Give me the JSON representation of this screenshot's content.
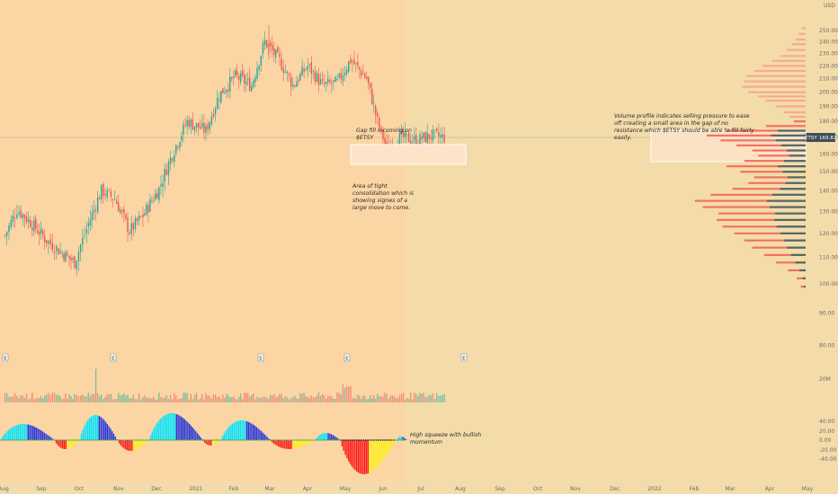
{
  "chart_data": {
    "type": "candlestick",
    "symbol": "ETSY",
    "currency": "USD",
    "last_price_label": "169.82",
    "last_price": 169.82,
    "price_axis": {
      "log_scale": true,
      "ylim": [
        56,
        260
      ],
      "ticks": [
        "250.00",
        "240.00",
        "230.00",
        "220.00",
        "210.00",
        "200.00",
        "190.00",
        "180.00",
        "170.00",
        "160.00",
        "150.00",
        "140.00",
        "130.00",
        "120.00",
        "110.00",
        "100.00",
        "90.00",
        "80.00",
        "70.00",
        "65.00",
        "60.00"
      ]
    },
    "x_axis": {
      "ticks": [
        "Aug",
        "Sep",
        "Oct",
        "Nov",
        "Dec",
        "2021",
        "Feb",
        "Mar",
        "Apr",
        "May",
        "Jun",
        "Jul",
        "Aug",
        "Sep",
        "Oct",
        "Nov",
        "Dec",
        "2022",
        "Feb",
        "Mar",
        "Apr",
        "May"
      ]
    },
    "close_path": [
      {
        "date": "2020-08-01",
        "close": 119
      },
      {
        "date": "2020-08-10",
        "close": 131
      },
      {
        "date": "2020-08-20",
        "close": 125
      },
      {
        "date": "2020-09-01",
        "close": 117
      },
      {
        "date": "2020-09-10",
        "close": 113
      },
      {
        "date": "2020-09-22",
        "close": 108
      },
      {
        "date": "2020-10-01",
        "close": 122
      },
      {
        "date": "2020-10-12",
        "close": 140
      },
      {
        "date": "2020-10-22",
        "close": 136
      },
      {
        "date": "2020-11-02",
        "close": 121
      },
      {
        "date": "2020-11-12",
        "close": 128
      },
      {
        "date": "2020-11-24",
        "close": 141
      },
      {
        "date": "2020-12-04",
        "close": 160
      },
      {
        "date": "2020-12-15",
        "close": 180
      },
      {
        "date": "2020-12-29",
        "close": 174
      },
      {
        "date": "2021-01-08",
        "close": 198
      },
      {
        "date": "2021-01-20",
        "close": 212
      },
      {
        "date": "2021-02-01",
        "close": 205
      },
      {
        "date": "2021-02-11",
        "close": 240
      },
      {
        "date": "2021-02-22",
        "close": 224
      },
      {
        "date": "2021-03-04",
        "close": 205
      },
      {
        "date": "2021-03-15",
        "close": 220
      },
      {
        "date": "2021-03-26",
        "close": 205
      },
      {
        "date": "2021-04-06",
        "close": 207
      },
      {
        "date": "2021-04-16",
        "close": 225
      },
      {
        "date": "2021-04-28",
        "close": 210
      },
      {
        "date": "2021-05-06",
        "close": 180
      },
      {
        "date": "2021-05-13",
        "close": 163
      },
      {
        "date": "2021-05-24",
        "close": 170
      },
      {
        "date": "2021-06-04",
        "close": 168
      },
      {
        "date": "2021-06-15",
        "close": 171
      },
      {
        "date": "2021-06-25",
        "close": 169.82
      }
    ],
    "volume_profile": {
      "rows": [
        {
          "price": 252,
          "volume": 4
        },
        {
          "price": 247,
          "volume": 7
        },
        {
          "price": 242,
          "volume": 10
        },
        {
          "price": 238,
          "volume": 14
        },
        {
          "price": 233,
          "volume": 19
        },
        {
          "price": 228,
          "volume": 25
        },
        {
          "price": 224,
          "volume": 34
        },
        {
          "price": 220,
          "volume": 44
        },
        {
          "price": 216,
          "volume": 52
        },
        {
          "price": 212,
          "volume": 60
        },
        {
          "price": 208,
          "volume": 62
        },
        {
          "price": 204,
          "volume": 64
        },
        {
          "price": 200,
          "volume": 58
        },
        {
          "price": 197,
          "volume": 48
        },
        {
          "price": 194,
          "volume": 40
        },
        {
          "price": 190,
          "volume": 30
        },
        {
          "price": 186,
          "volume": 22
        },
        {
          "price": 183,
          "volume": 16
        },
        {
          "price": 180,
          "volume": 12
        },
        {
          "price": 177,
          "volume": 40
        },
        {
          "price": 174,
          "volume": 80
        },
        {
          "price": 171,
          "volume": 100
        },
        {
          "price": 168,
          "volume": 86
        },
        {
          "price": 165,
          "volume": 70
        },
        {
          "price": 162,
          "volume": 54
        },
        {
          "price": 159,
          "volume": 48
        },
        {
          "price": 156,
          "volume": 62
        },
        {
          "price": 153,
          "volume": 80
        },
        {
          "price": 150,
          "volume": 66
        },
        {
          "price": 147,
          "volume": 52
        },
        {
          "price": 144,
          "volume": 58
        },
        {
          "price": 141,
          "volume": 74
        },
        {
          "price": 138,
          "volume": 96
        },
        {
          "price": 135,
          "volume": 112
        },
        {
          "price": 132,
          "volume": 104
        },
        {
          "price": 129,
          "volume": 88
        },
        {
          "price": 126,
          "volume": 90
        },
        {
          "price": 123,
          "volume": 84
        },
        {
          "price": 120,
          "volume": 72
        },
        {
          "price": 117,
          "volume": 62
        },
        {
          "price": 114,
          "volume": 54
        },
        {
          "price": 111,
          "volume": 42
        },
        {
          "price": 108,
          "volume": 30
        },
        {
          "price": 105,
          "volume": 18
        },
        {
          "price": 102,
          "volume": 9
        },
        {
          "price": 99,
          "volume": 5
        }
      ]
    },
    "squeeze_momentum_ticks": [
      "40.00",
      "20.00",
      "0.00",
      "-20.00",
      "-40.00"
    ],
    "volume_pane_tick": "20M",
    "event_markers": [
      "E",
      "E",
      "E",
      "E",
      "E"
    ],
    "annotations": {
      "gap_fill": "Gap fill incoming on $ETSY",
      "consolidation": "Area of tight consolidation which is showing signes of a large move to come.",
      "volume_profile_note": "Volume profile indicates selling pressure to ease off creating a small area in the gap of no resistance which $ETSY should be able to fill fairly easily.",
      "squeeze": "High squeeze with bullish momentum"
    }
  },
  "colors": {
    "background": "#f3dcaa",
    "history_shade": "#fbd6a4",
    "up": "#26a69a",
    "down": "#ef5350",
    "profile_down": "#f26b5e",
    "profile_up": "#4f6b6a",
    "profile_upper": "#f5a88f",
    "gap_box_fill": "#fde3c8",
    "gap_box_stroke": "#ffffff",
    "momentum_cyan": "#00e5ff",
    "momentum_blue": "#2233dd",
    "momentum_red": "#ff1a1a",
    "momentum_yellow": "#ffee22",
    "price_label_bg": "#3d4e57"
  }
}
